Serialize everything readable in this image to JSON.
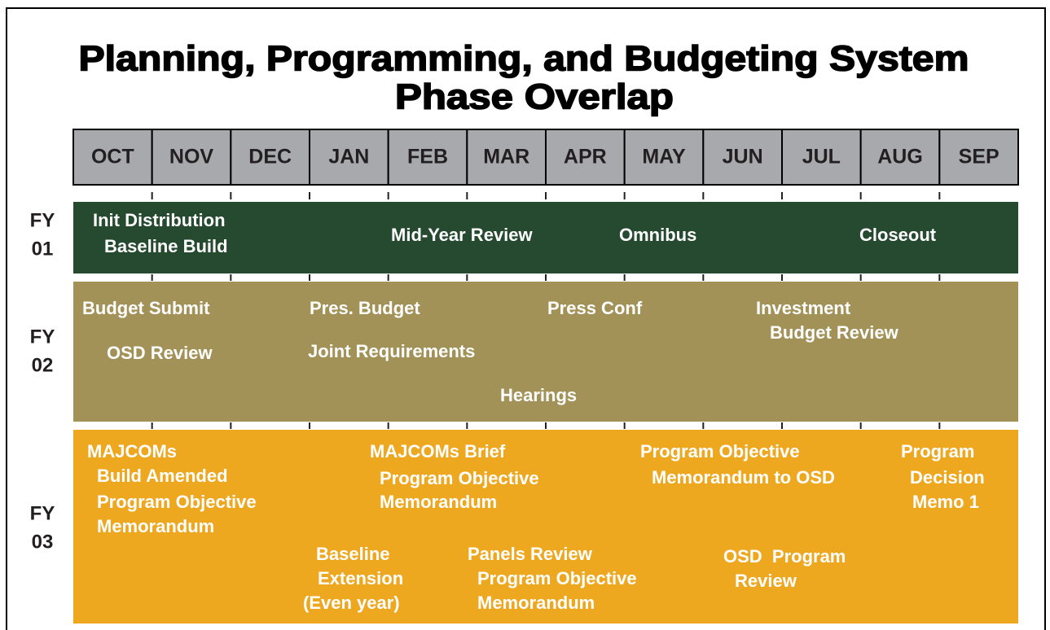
{
  "title": [
    "Planning, Programming, and Budgeting System",
    "Phase Overlap"
  ],
  "months": [
    "OCT",
    "NOV",
    "DEC",
    "JAN",
    "FEB",
    "MAR",
    "APR",
    "MAY",
    "JUN",
    "JUL",
    "AUG",
    "SEP"
  ],
  "rows": [
    {
      "label": [
        "FY",
        "01"
      ],
      "items": [
        {
          "lines": [
            "Init Distribution",
            "Baseline Build"
          ]
        },
        {
          "lines": [
            "Mid-Year Review"
          ]
        },
        {
          "lines": [
            "Omnibus"
          ]
        },
        {
          "lines": [
            "Closeout"
          ]
        }
      ]
    },
    {
      "label": [
        "FY",
        "02"
      ],
      "items": [
        {
          "lines": [
            "Budget Submit"
          ]
        },
        {
          "lines": [
            "OSD Review"
          ]
        },
        {
          "lines": [
            "Pres. Budget"
          ]
        },
        {
          "lines": [
            "Joint Requirements"
          ]
        },
        {
          "lines": [
            "Hearings"
          ]
        },
        {
          "lines": [
            "Press Conf"
          ]
        },
        {
          "lines": [
            "Investment",
            "Budget Review"
          ]
        }
      ]
    },
    {
      "label": [
        "FY",
        "03"
      ],
      "items": [
        {
          "lines": [
            "MAJCOMs",
            "Build Amended",
            "Program Objective",
            "Memorandum"
          ]
        },
        {
          "lines": [
            "Baseline",
            "Extension",
            "(Even year)"
          ]
        },
        {
          "lines": [
            "MAJCOMs Brief",
            "Program Objective",
            "Memorandum"
          ]
        },
        {
          "lines": [
            "Panels Review",
            "Program Objective",
            "Memorandum"
          ]
        },
        {
          "lines": [
            "Program Objective",
            "Memorandum to OSD"
          ]
        },
        {
          "lines": [
            "OSD  Program",
            "Review"
          ]
        },
        {
          "lines": [
            "Program",
            "Decision",
            "Memo 1"
          ]
        }
      ]
    }
  ]
}
